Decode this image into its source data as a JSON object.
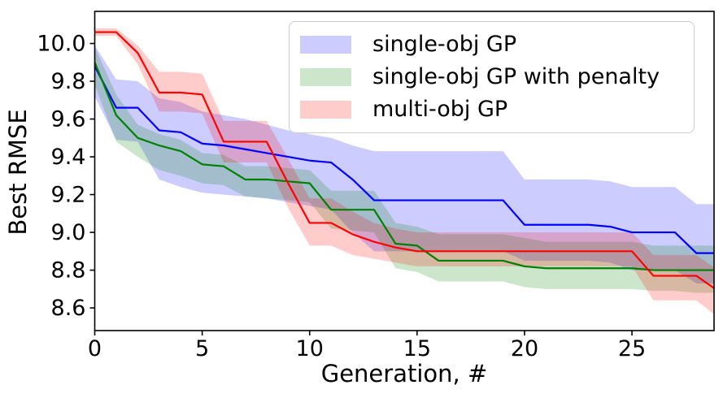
{
  "chart_data": {
    "type": "line",
    "title": "",
    "xlabel": "Generation, #",
    "ylabel": "Best RMSE",
    "x": [
      0,
      1,
      2,
      3,
      4,
      5,
      6,
      7,
      8,
      9,
      10,
      11,
      12,
      13,
      14,
      15,
      16,
      17,
      18,
      19,
      20,
      21,
      22,
      23,
      24,
      25,
      26,
      27,
      28,
      29
    ],
    "xlim": [
      0,
      28.82
    ],
    "ylim": [
      8.48,
      10.17
    ],
    "grid": false,
    "legend_position": "upper right",
    "series": [
      {
        "id": "single-obj-gp",
        "name": "single-obj GP",
        "color": "#0000ff",
        "band_fill": "rgba(0,0,255,0.2)",
        "values": [
          9.88,
          9.66,
          9.66,
          9.54,
          9.53,
          9.47,
          9.46,
          9.44,
          9.42,
          9.4,
          9.38,
          9.37,
          9.28,
          9.17,
          9.17,
          9.17,
          9.17,
          9.17,
          9.17,
          9.17,
          9.04,
          9.04,
          9.04,
          9.04,
          9.03,
          9.0,
          9.0,
          9.0,
          8.89,
          8.89
        ],
        "band_upper": [
          9.99,
          9.81,
          9.8,
          9.71,
          9.69,
          9.64,
          9.62,
          9.6,
          9.57,
          9.54,
          9.52,
          9.5,
          9.46,
          9.43,
          9.43,
          9.43,
          9.43,
          9.43,
          9.43,
          9.43,
          9.28,
          9.28,
          9.28,
          9.28,
          9.27,
          9.24,
          9.24,
          9.24,
          9.15,
          9.15
        ],
        "band_lower": [
          9.72,
          9.49,
          9.48,
          9.28,
          9.24,
          9.21,
          9.2,
          9.19,
          9.18,
          9.16,
          9.14,
          9.12,
          9.0,
          8.9,
          8.9,
          8.9,
          8.9,
          8.9,
          8.9,
          8.9,
          8.85,
          8.85,
          8.85,
          8.85,
          8.84,
          8.8,
          8.8,
          8.8,
          8.73,
          8.73
        ]
      },
      {
        "id": "single-obj-gp-penalty",
        "name": "single-obj GP with penalty",
        "color": "#008000",
        "band_fill": "rgba(0,128,0,0.2)",
        "values": [
          9.9,
          9.62,
          9.5,
          9.46,
          9.43,
          9.36,
          9.35,
          9.28,
          9.28,
          9.27,
          9.26,
          9.12,
          9.12,
          9.12,
          8.94,
          8.93,
          8.85,
          8.85,
          8.85,
          8.85,
          8.82,
          8.81,
          8.81,
          8.81,
          8.81,
          8.81,
          8.8,
          8.8,
          8.8,
          8.8
        ],
        "band_upper": [
          9.98,
          9.73,
          9.57,
          9.52,
          9.49,
          9.42,
          9.41,
          9.35,
          9.35,
          9.34,
          9.33,
          9.22,
          9.22,
          9.22,
          9.05,
          9.03,
          8.99,
          8.99,
          8.99,
          8.99,
          8.97,
          8.95,
          8.95,
          8.95,
          8.95,
          8.95,
          8.93,
          8.93,
          8.93,
          8.93
        ],
        "band_lower": [
          9.78,
          9.48,
          9.4,
          9.33,
          9.3,
          9.26,
          9.25,
          9.19,
          9.18,
          9.17,
          9.16,
          9.02,
          9.01,
          9.0,
          8.81,
          8.79,
          8.74,
          8.74,
          8.74,
          8.74,
          8.71,
          8.7,
          8.7,
          8.7,
          8.7,
          8.7,
          8.69,
          8.69,
          8.68,
          8.68
        ]
      },
      {
        "id": "multi-obj-gp",
        "name": "multi-obj GP",
        "color": "#ff0000",
        "band_fill": "rgba(255,0,0,0.2)",
        "values": [
          10.06,
          10.06,
          9.95,
          9.74,
          9.74,
          9.73,
          9.48,
          9.48,
          9.48,
          9.26,
          9.05,
          9.05,
          8.99,
          8.95,
          8.92,
          8.9,
          8.9,
          8.9,
          8.9,
          8.9,
          8.9,
          8.9,
          8.9,
          8.9,
          8.9,
          8.9,
          8.77,
          8.77,
          8.77,
          8.69
        ],
        "band_upper": [
          10.08,
          10.08,
          9.99,
          9.85,
          9.85,
          9.84,
          9.59,
          9.59,
          9.59,
          9.39,
          9.18,
          9.18,
          9.11,
          9.05,
          9.02,
          9.0,
          9.0,
          9.0,
          9.0,
          9.0,
          9.0,
          9.0,
          9.0,
          9.0,
          9.0,
          9.0,
          8.88,
          8.88,
          8.88,
          8.8
        ],
        "band_lower": [
          10.04,
          10.04,
          9.89,
          9.64,
          9.64,
          9.63,
          9.37,
          9.37,
          9.37,
          9.13,
          8.93,
          8.93,
          8.88,
          8.86,
          8.84,
          8.82,
          8.82,
          8.82,
          8.82,
          8.82,
          8.82,
          8.82,
          8.82,
          8.82,
          8.82,
          8.82,
          8.64,
          8.64,
          8.64,
          8.55
        ]
      }
    ]
  },
  "axes": {
    "spine_color": "#000000",
    "tick_color": "#000000",
    "xticks": [
      {
        "value": 0,
        "label": "0"
      },
      {
        "value": 5,
        "label": "5"
      },
      {
        "value": 10,
        "label": "10"
      },
      {
        "value": 15,
        "label": "15"
      },
      {
        "value": 20,
        "label": "20"
      },
      {
        "value": 25,
        "label": "25"
      }
    ],
    "yticks": [
      {
        "value": 10.0,
        "label": "10.0"
      },
      {
        "value": 9.8,
        "label": "9.8"
      },
      {
        "value": 9.6,
        "label": "9.6"
      },
      {
        "value": 9.4,
        "label": "9.4"
      },
      {
        "value": 9.2,
        "label": "9.2"
      },
      {
        "value": 9.0,
        "label": "9.0"
      },
      {
        "value": 8.8,
        "label": "8.8"
      },
      {
        "value": 8.6,
        "label": "8.6"
      }
    ]
  }
}
